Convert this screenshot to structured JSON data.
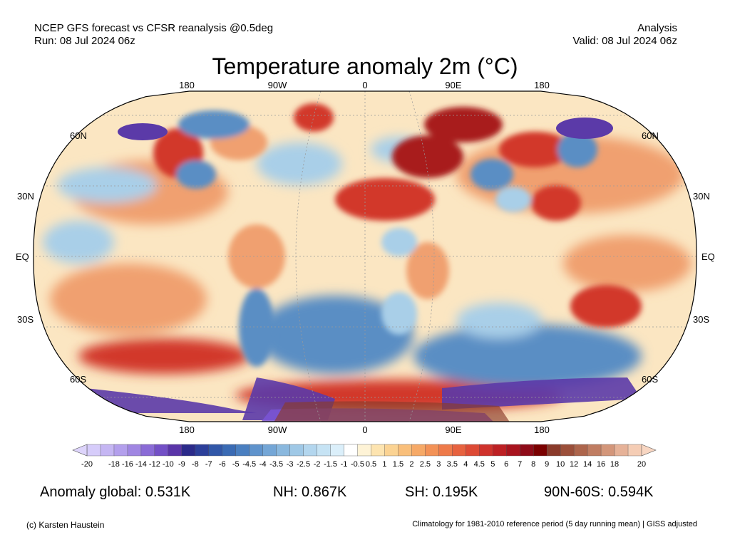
{
  "header": {
    "left_line1": "NCEP GFS forecast vs CFSR reanalysis @0.5deg",
    "left_line2": "Run: 08 Jul 2024 06z",
    "right_line1": "Analysis",
    "right_line2": "Valid: 08 Jul 2024 06z"
  },
  "title": "Temperature anomaly 2m (°C)",
  "map": {
    "lon_labels_top": [
      "180",
      "90W",
      "0",
      "90E",
      "180"
    ],
    "lon_labels_bottom": [
      "180",
      "90W",
      "0",
      "90E",
      "180"
    ],
    "lat_labels_left": [
      "60N",
      "30N",
      "EQ",
      "30S",
      "60S"
    ],
    "lat_labels_right": [
      "60N",
      "30N",
      "EQ",
      "30S",
      "60S"
    ],
    "colors": {
      "ocean_base": "#fbe6c2",
      "warm": "#f0a070",
      "hot": "#d2382c",
      "very_hot": "#a81f1f",
      "cool": "#a9cfe8",
      "cold": "#5a8ec4",
      "very_cold": "#5b3aa8",
      "extreme_cold": "#7a55d6"
    }
  },
  "colorbar": {
    "labels": [
      "-20",
      "-18",
      "-16",
      "-14",
      "-12",
      "-10",
      "-9",
      "-8",
      "-7",
      "-6",
      "-5",
      "-4.5",
      "-4",
      "-3.5",
      "-3",
      "-2.5",
      "-2",
      "-1.5",
      "-1",
      "-0.5",
      "0.5",
      "1",
      "1.5",
      "2",
      "2.5",
      "3",
      "3.5",
      "4",
      "4.5",
      "5",
      "6",
      "7",
      "8",
      "9",
      "10",
      "12",
      "14",
      "16",
      "18",
      "20"
    ],
    "colors": [
      "#d6ccfa",
      "#c5b6f3",
      "#b39fec",
      "#a086e2",
      "#8a6bd6",
      "#7350c6",
      "#5a35a8",
      "#2b2a8a",
      "#2c3f9a",
      "#3157a8",
      "#3a6bb4",
      "#4a7fc0",
      "#5f93cc",
      "#74a6d6",
      "#8ab8de",
      "#9fc8e6",
      "#b3d6ee",
      "#c6e3f4",
      "#dbeffa",
      "#ffffff",
      "#fef3d6",
      "#fde4b0",
      "#fbd393",
      "#f9bf7b",
      "#f6a967",
      "#f39257",
      "#ee7a4a",
      "#e7623f",
      "#dd4a35",
      "#cf322c",
      "#bd2024",
      "#a8141e",
      "#8e0b18",
      "#7a0000",
      "#8a3a2a",
      "#9b4f3a",
      "#ad654c",
      "#c07d62",
      "#d3967a",
      "#e6b298",
      "#f5cdb5"
    ],
    "triangle_low": "#ddd4fb",
    "triangle_high": "#f8d6c2"
  },
  "stats": {
    "global": "Anomaly global: 0.531K",
    "nh": "NH: 0.867K",
    "sh": "SH: 0.195K",
    "arctic": "90N-60S: 0.594K"
  },
  "footer": {
    "left": "(c) Karsten Haustein",
    "right": "Climatology for 1981-2010 reference period (5 day running mean) | GISS adjusted"
  }
}
